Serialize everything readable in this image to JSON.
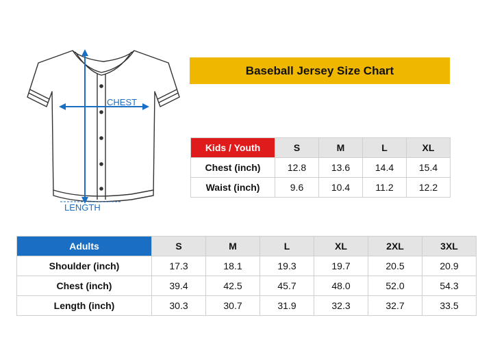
{
  "diagram": {
    "chest_label": "CHEST",
    "length_label": "LENGTH"
  },
  "title": "Baseball Jersey Size Chart",
  "kids_table": {
    "header_label": "Kids / Youth",
    "sizes": [
      "S",
      "M",
      "L",
      "XL"
    ],
    "rows": [
      {
        "label": "Chest (inch)",
        "values": [
          "12.8",
          "13.6",
          "14.4",
          "15.4"
        ]
      },
      {
        "label": "Waist (inch)",
        "values": [
          "9.6",
          "10.4",
          "11.2",
          "12.2"
        ]
      }
    ]
  },
  "adults_table": {
    "header_label": "Adults",
    "sizes": [
      "S",
      "M",
      "L",
      "XL",
      "2XL",
      "3XL"
    ],
    "rows": [
      {
        "label": "Shoulder (inch)",
        "values": [
          "17.3",
          "18.1",
          "19.3",
          "19.7",
          "20.5",
          "20.9"
        ]
      },
      {
        "label": "Chest (inch)",
        "values": [
          "39.4",
          "42.5",
          "45.7",
          "48.0",
          "52.0",
          "54.3"
        ]
      },
      {
        "label": "Length (inch)",
        "values": [
          "30.3",
          "30.7",
          "31.9",
          "32.3",
          "32.7",
          "33.5"
        ]
      }
    ]
  },
  "colors": {
    "title_bar": "#f0b700",
    "kids_header": "#e01b1b",
    "adults_header": "#1a6fc4",
    "measure_line": "#1a6fc4",
    "header_gray": "#e4e4e4"
  }
}
